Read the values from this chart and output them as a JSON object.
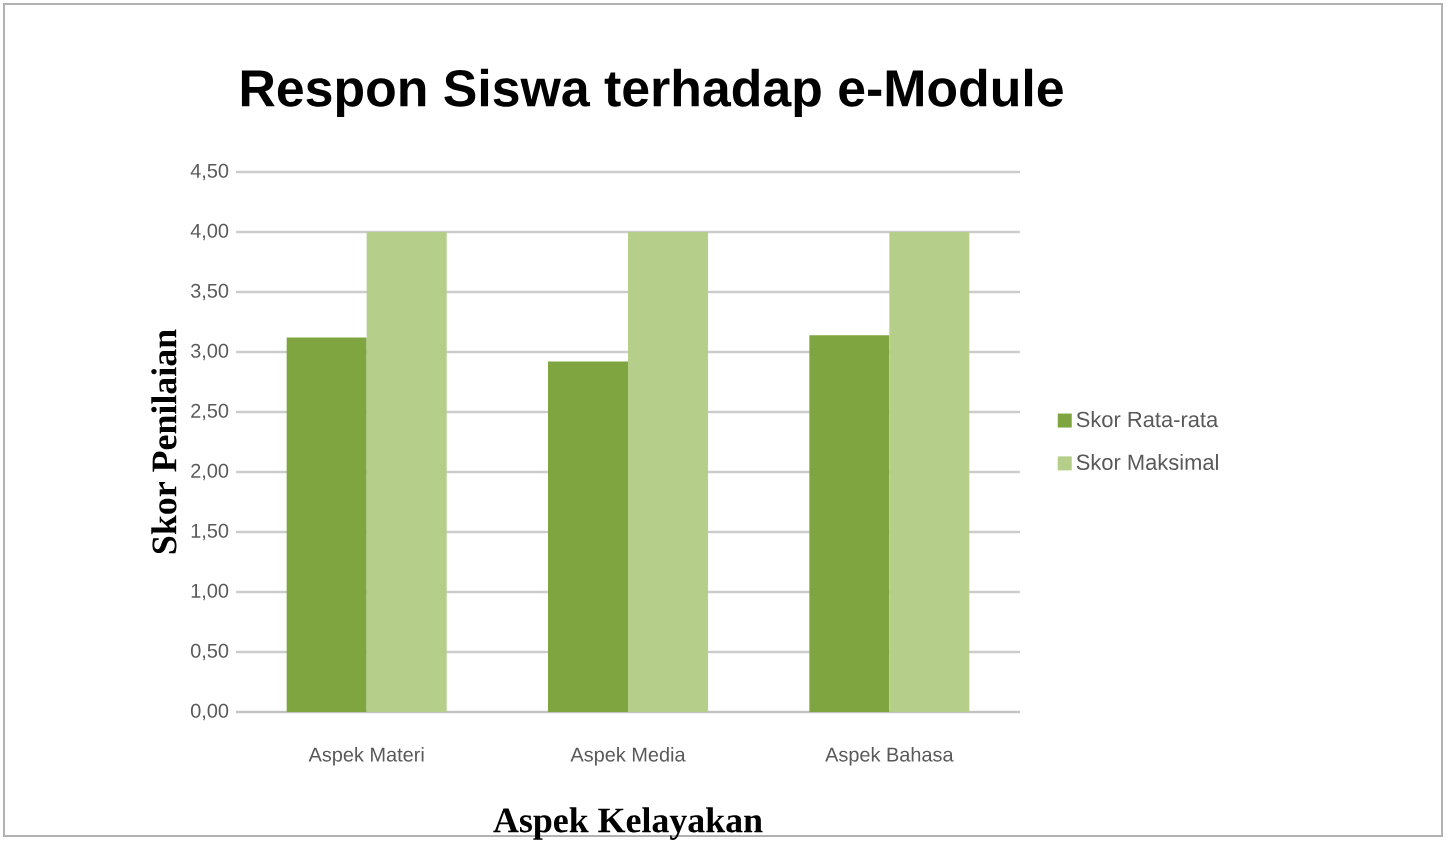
{
  "chart_data": {
    "type": "bar",
    "title": "Respon Siswa terhadap e-Module",
    "xlabel": "Aspek Kelayakan",
    "ylabel": "Skor Penilaian",
    "categories": [
      "Aspek Materi",
      "Aspek Media",
      "Aspek Bahasa"
    ],
    "series": [
      {
        "name": "Skor Rata-rata",
        "color": "#7fa540",
        "values": [
          3.12,
          2.92,
          3.14
        ]
      },
      {
        "name": "Skor Maksimal",
        "color": "#b5cf8a",
        "values": [
          4.0,
          4.0,
          4.0
        ]
      }
    ],
    "ylim": [
      0,
      4.5
    ],
    "yticks": [
      {
        "value": 0,
        "label": "0,00"
      },
      {
        "value": 0.5,
        "label": "0,50"
      },
      {
        "value": 1,
        "label": "1,00"
      },
      {
        "value": 1.5,
        "label": "1,50"
      },
      {
        "value": 2,
        "label": "2,00"
      },
      {
        "value": 2.5,
        "label": "2,50"
      },
      {
        "value": 3,
        "label": "3,00"
      },
      {
        "value": 3.5,
        "label": "3,50"
      },
      {
        "value": 4,
        "label": "4,00"
      },
      {
        "value": 4.5,
        "label": "4,50"
      }
    ],
    "grid": "y",
    "legend": "right"
  }
}
